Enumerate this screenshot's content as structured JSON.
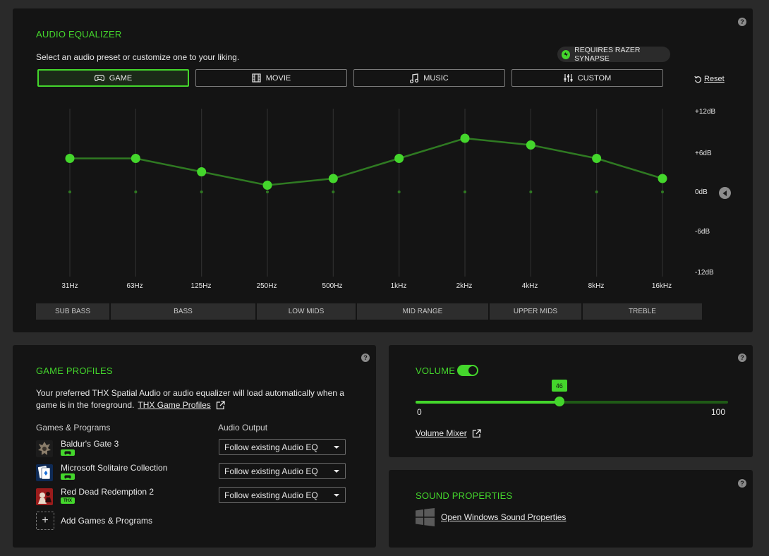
{
  "equalizer": {
    "title": "AUDIO EQUALIZER",
    "description": "Select an audio preset or customize one to your liking.",
    "synapse_badge": "REQUIRES RAZER SYNAPSE",
    "presets": [
      {
        "label": "GAME",
        "icon": "gamepad-icon",
        "active": true
      },
      {
        "label": "MOVIE",
        "icon": "film-icon",
        "active": false
      },
      {
        "label": "MUSIC",
        "icon": "music-note-icon",
        "active": false
      },
      {
        "label": "CUSTOM",
        "icon": "sliders-icon",
        "active": false
      }
    ],
    "reset_label": "Reset",
    "db_labels": [
      "+12dB",
      "+6dB",
      "0dB",
      "-6dB",
      "-12dB"
    ],
    "db_range": [
      -12,
      12
    ],
    "frequencies": [
      "31Hz",
      "63Hz",
      "125Hz",
      "250Hz",
      "500Hz",
      "1kHz",
      "2kHz",
      "4kHz",
      "8kHz",
      "16kHz"
    ],
    "gains_db": [
      5,
      5,
      3,
      1,
      2,
      5,
      8,
      7,
      5,
      2
    ],
    "bands": [
      "SUB BASS",
      "BASS",
      "LOW MIDS",
      "MID RANGE",
      "UPPER MIDS",
      "TREBLE"
    ],
    "accent_color": "#44d62c"
  },
  "game_profiles": {
    "title": "GAME PROFILES",
    "description_line1": "Your preferred THX Spatial Audio or audio equalizer will load automatically when a",
    "description_line2": "game is in the foreground.",
    "link_label": "THX Game Profiles",
    "col_games": "Games & Programs",
    "col_output": "Audio Output",
    "games": [
      {
        "name": "Baldur's Gate 3",
        "tag": "gamepad",
        "output": "Follow existing Audio EQ"
      },
      {
        "name": "Microsoft Solitaire Collection",
        "tag": "gamepad",
        "output": "Follow existing Audio EQ"
      },
      {
        "name": "Red Dead Redemption 2",
        "tag": "THX",
        "output": "Follow existing Audio EQ"
      }
    ],
    "add_label": "Add Games & Programs"
  },
  "volume": {
    "title": "VOLUME",
    "enabled": true,
    "value": 46,
    "min": "0",
    "max": "100",
    "mixer_label": "Volume Mixer"
  },
  "sound_properties": {
    "title": "SOUND PROPERTIES",
    "link_label": "Open Windows Sound Properties"
  }
}
